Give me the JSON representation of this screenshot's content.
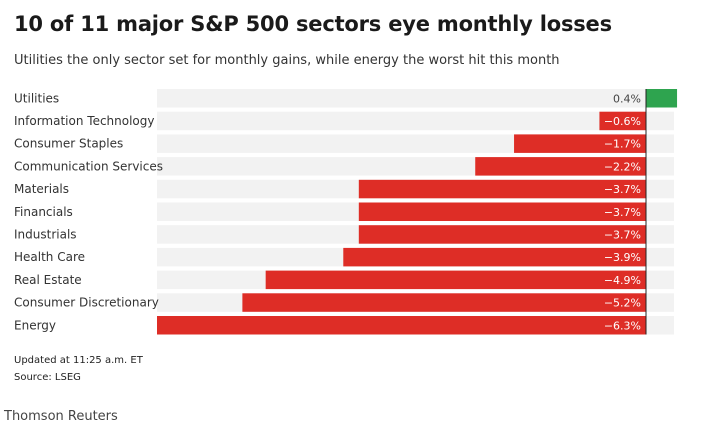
{
  "title": "10 of 11 major S&P 500 sectors eye monthly losses",
  "subtitle": "Utilities the only sector set for monthly gains, while energy the worst hit this month",
  "updated": "Updated at 11:25 a.m. ET",
  "source": "Source: LSEG",
  "credit": "Thomson Reuters",
  "colors": {
    "positive": "#2ea44f",
    "negative": "#de2d26",
    "track": "#f2f2f2",
    "zero_line": "#222222"
  },
  "chart_data": {
    "type": "bar",
    "orientation": "horizontal",
    "title": "10 of 11 major S&P 500 sectors eye monthly losses",
    "subtitle": "Utilities the only sector set for monthly gains, while energy the worst hit this month",
    "categories": [
      "Utilities",
      "Information Technology",
      "Consumer Staples",
      "Communication Services",
      "Materials",
      "Financials",
      "Industrials",
      "Health Care",
      "Real Estate",
      "Consumer Discretionary",
      "Energy"
    ],
    "values": [
      0.4,
      -0.6,
      -1.7,
      -2.2,
      -3.7,
      -3.7,
      -3.7,
      -3.9,
      -4.9,
      -5.2,
      -6.3
    ],
    "value_labels": [
      "0.4%",
      "−0.6%",
      "−1.7%",
      "−2.2%",
      "−3.7%",
      "−3.7%",
      "−3.7%",
      "−3.9%",
      "−4.9%",
      "−5.2%",
      "−6.3%"
    ],
    "xlim": [
      -6.3,
      0.4
    ],
    "grid": false,
    "legend": "none"
  }
}
